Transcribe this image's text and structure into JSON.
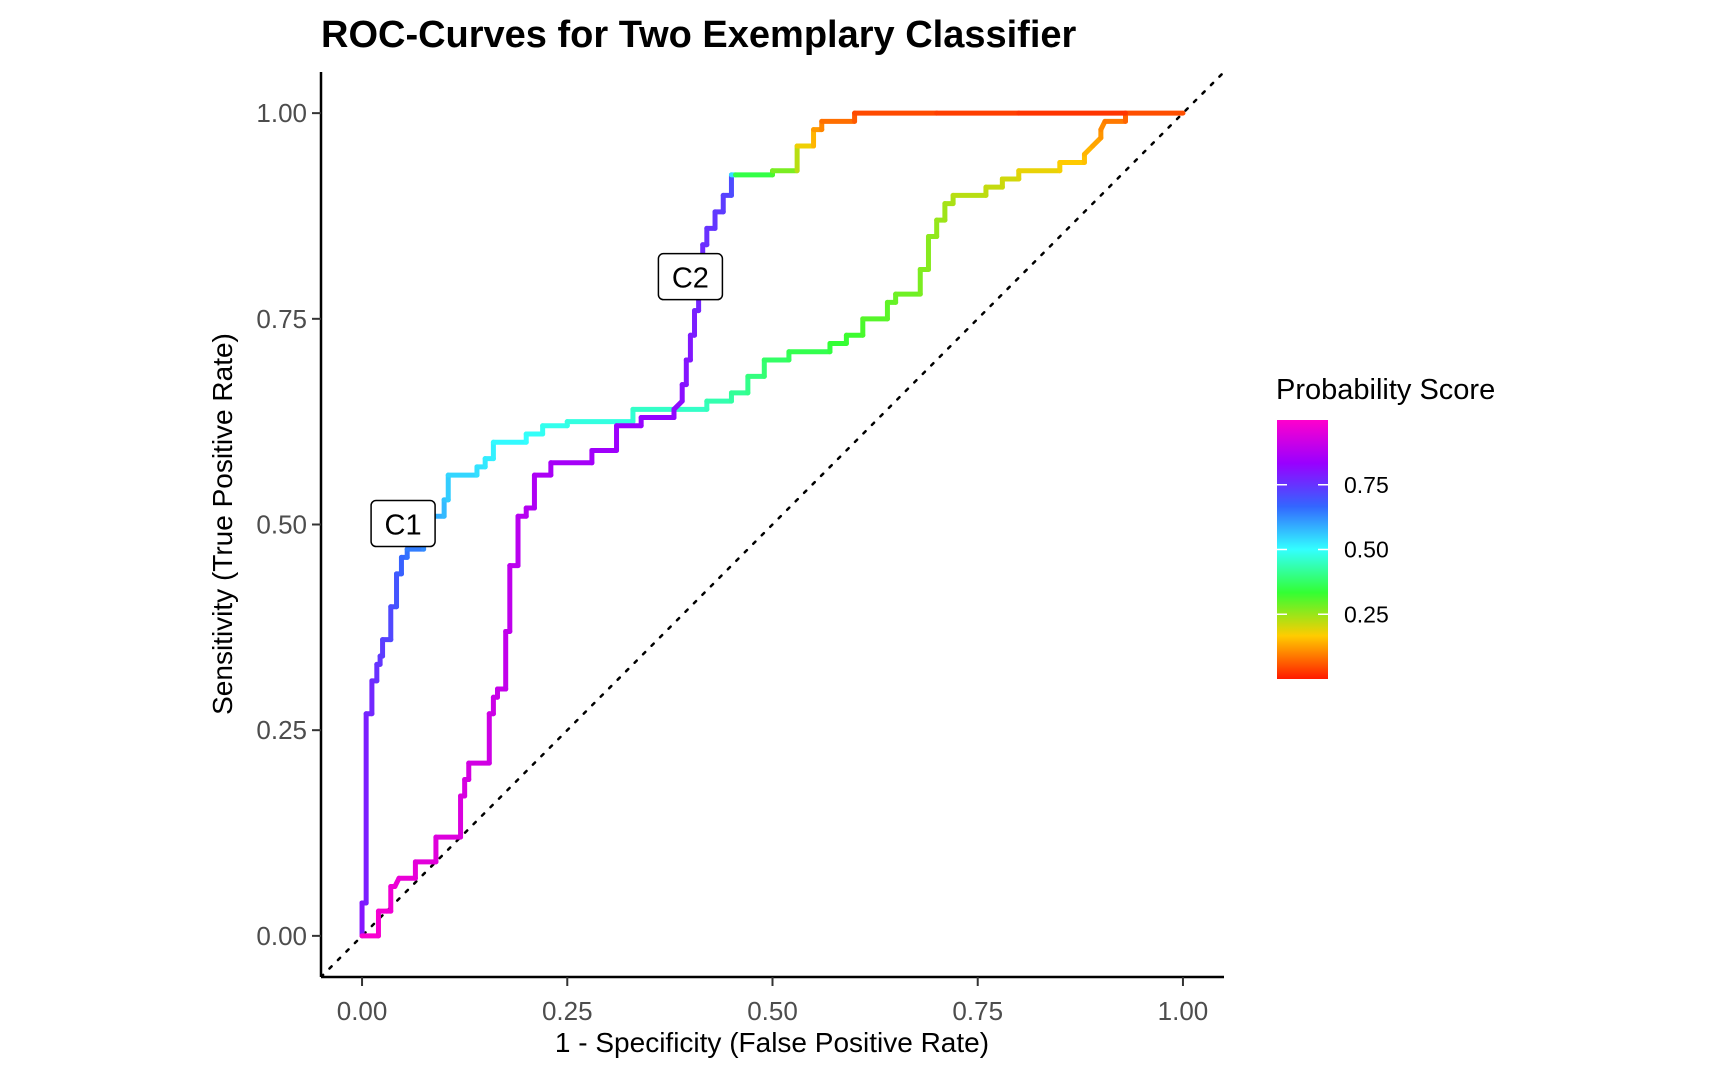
{
  "chart_data": {
    "type": "line",
    "title": "ROC-Curves for Two Exemplary Classifier",
    "xlabel": "1 - Specificity (False Positive Rate)",
    "ylabel": "Sensitivity (True Positive Rate)",
    "xlim": [
      -0.05,
      1.05
    ],
    "ylim": [
      -0.05,
      1.05
    ],
    "xticks": [
      0,
      0.25,
      0.5,
      0.75,
      1.0
    ],
    "xtick_labels": [
      "0.00",
      "0.25",
      "0.50",
      "0.75",
      "1.00"
    ],
    "yticks": [
      0,
      0.25,
      0.5,
      0.75,
      1.0
    ],
    "ytick_labels": [
      "0.00",
      "0.25",
      "0.50",
      "0.75",
      "1.00"
    ],
    "grid": false,
    "reference_line": {
      "x": [
        -0.05,
        1.05
      ],
      "y": [
        -0.05,
        1.05
      ],
      "style": "dotted"
    },
    "legend": {
      "title": "Probability Score",
      "placement": "right",
      "range": [
        0,
        1
      ],
      "ticks": [
        0.25,
        0.5,
        0.75
      ],
      "tick_labels": [
        "0.25",
        "0.50",
        "0.75"
      ],
      "colors": [
        "#ff1a00",
        "#ffcc00",
        "#33ff33",
        "#33ffff",
        "#3366ff",
        "#9900ff",
        "#ff00cc"
      ]
    },
    "annotations": [
      {
        "label": "C1",
        "x": 0.05,
        "y": 0.5
      },
      {
        "label": "C2",
        "x": 0.4,
        "y": 0.8
      }
    ],
    "series": [
      {
        "points": [
          [
            0.0,
            0.0,
            0.8
          ],
          [
            0.0,
            0.04,
            0.8
          ],
          [
            0.005,
            0.04,
            0.79
          ],
          [
            0.005,
            0.27,
            0.78
          ],
          [
            0.012,
            0.27,
            0.77
          ],
          [
            0.012,
            0.31,
            0.77
          ],
          [
            0.018,
            0.31,
            0.76
          ],
          [
            0.018,
            0.33,
            0.75
          ],
          [
            0.022,
            0.33,
            0.75
          ],
          [
            0.022,
            0.34,
            0.74
          ],
          [
            0.025,
            0.34,
            0.74
          ],
          [
            0.025,
            0.36,
            0.73
          ],
          [
            0.035,
            0.36,
            0.72
          ],
          [
            0.035,
            0.4,
            0.71
          ],
          [
            0.042,
            0.4,
            0.7
          ],
          [
            0.042,
            0.44,
            0.69
          ],
          [
            0.048,
            0.44,
            0.68
          ],
          [
            0.048,
            0.46,
            0.67
          ],
          [
            0.055,
            0.46,
            0.66
          ],
          [
            0.055,
            0.47,
            0.65
          ],
          [
            0.075,
            0.47,
            0.63
          ],
          [
            0.075,
            0.49,
            0.62
          ],
          [
            0.085,
            0.49,
            0.6
          ],
          [
            0.085,
            0.51,
            0.59
          ],
          [
            0.1,
            0.51,
            0.58
          ],
          [
            0.1,
            0.53,
            0.57
          ],
          [
            0.105,
            0.53,
            0.56
          ],
          [
            0.105,
            0.56,
            0.55
          ],
          [
            0.14,
            0.56,
            0.54
          ],
          [
            0.14,
            0.57,
            0.53
          ],
          [
            0.15,
            0.57,
            0.53
          ],
          [
            0.15,
            0.58,
            0.52
          ],
          [
            0.16,
            0.58,
            0.52
          ],
          [
            0.16,
            0.6,
            0.51
          ],
          [
            0.2,
            0.6,
            0.5
          ],
          [
            0.2,
            0.61,
            0.5
          ],
          [
            0.22,
            0.61,
            0.49
          ],
          [
            0.22,
            0.62,
            0.49
          ],
          [
            0.25,
            0.62,
            0.48
          ],
          [
            0.25,
            0.625,
            0.48
          ],
          [
            0.33,
            0.625,
            0.47
          ],
          [
            0.33,
            0.64,
            0.46
          ],
          [
            0.42,
            0.64,
            0.45
          ],
          [
            0.42,
            0.65,
            0.44
          ],
          [
            0.45,
            0.65,
            0.43
          ],
          [
            0.45,
            0.66,
            0.42
          ],
          [
            0.47,
            0.66,
            0.41
          ],
          [
            0.47,
            0.68,
            0.4
          ],
          [
            0.49,
            0.68,
            0.39
          ],
          [
            0.49,
            0.7,
            0.38
          ],
          [
            0.52,
            0.7,
            0.37
          ],
          [
            0.52,
            0.71,
            0.36
          ],
          [
            0.57,
            0.71,
            0.35
          ],
          [
            0.57,
            0.72,
            0.34
          ],
          [
            0.59,
            0.72,
            0.33
          ],
          [
            0.59,
            0.73,
            0.33
          ],
          [
            0.61,
            0.73,
            0.32
          ],
          [
            0.61,
            0.75,
            0.31
          ],
          [
            0.64,
            0.75,
            0.3
          ],
          [
            0.64,
            0.77,
            0.3
          ],
          [
            0.65,
            0.77,
            0.29
          ],
          [
            0.65,
            0.78,
            0.29
          ],
          [
            0.68,
            0.78,
            0.28
          ],
          [
            0.68,
            0.81,
            0.27
          ],
          [
            0.69,
            0.81,
            0.27
          ],
          [
            0.69,
            0.85,
            0.26
          ],
          [
            0.7,
            0.85,
            0.26
          ],
          [
            0.7,
            0.87,
            0.25
          ],
          [
            0.71,
            0.87,
            0.25
          ],
          [
            0.71,
            0.89,
            0.24
          ],
          [
            0.72,
            0.89,
            0.24
          ],
          [
            0.72,
            0.9,
            0.23
          ],
          [
            0.76,
            0.9,
            0.22
          ],
          [
            0.76,
            0.91,
            0.22
          ],
          [
            0.78,
            0.91,
            0.21
          ],
          [
            0.78,
            0.92,
            0.21
          ],
          [
            0.8,
            0.92,
            0.2
          ],
          [
            0.8,
            0.93,
            0.19
          ],
          [
            0.85,
            0.93,
            0.18
          ],
          [
            0.85,
            0.94,
            0.17
          ],
          [
            0.88,
            0.94,
            0.16
          ],
          [
            0.88,
            0.95,
            0.15
          ],
          [
            0.89,
            0.96,
            0.14
          ],
          [
            0.9,
            0.97,
            0.12
          ],
          [
            0.9,
            0.98,
            0.11
          ],
          [
            0.905,
            0.99,
            0.1
          ],
          [
            0.93,
            0.99,
            0.08
          ],
          [
            0.93,
            1.0,
            0.06
          ],
          [
            1.0,
            1.0,
            0.04
          ]
        ]
      },
      {
        "points": [
          [
            0.0,
            0.0,
            0.99
          ],
          [
            0.02,
            0.0,
            0.99
          ],
          [
            0.02,
            0.03,
            0.98
          ],
          [
            0.03,
            0.03,
            0.98
          ],
          [
            0.035,
            0.03,
            0.98
          ],
          [
            0.035,
            0.06,
            0.97
          ],
          [
            0.04,
            0.06,
            0.97
          ],
          [
            0.045,
            0.07,
            0.97
          ],
          [
            0.065,
            0.07,
            0.96
          ],
          [
            0.065,
            0.09,
            0.96
          ],
          [
            0.09,
            0.09,
            0.95
          ],
          [
            0.09,
            0.12,
            0.95
          ],
          [
            0.12,
            0.12,
            0.94
          ],
          [
            0.12,
            0.17,
            0.94
          ],
          [
            0.125,
            0.17,
            0.94
          ],
          [
            0.125,
            0.19,
            0.93
          ],
          [
            0.13,
            0.19,
            0.93
          ],
          [
            0.13,
            0.21,
            0.93
          ],
          [
            0.155,
            0.21,
            0.92
          ],
          [
            0.155,
            0.27,
            0.92
          ],
          [
            0.16,
            0.27,
            0.92
          ],
          [
            0.16,
            0.29,
            0.91
          ],
          [
            0.165,
            0.29,
            0.91
          ],
          [
            0.165,
            0.3,
            0.91
          ],
          [
            0.175,
            0.3,
            0.9
          ],
          [
            0.175,
            0.37,
            0.9
          ],
          [
            0.18,
            0.37,
            0.9
          ],
          [
            0.18,
            0.45,
            0.89
          ],
          [
            0.19,
            0.45,
            0.89
          ],
          [
            0.19,
            0.51,
            0.88
          ],
          [
            0.2,
            0.51,
            0.88
          ],
          [
            0.2,
            0.52,
            0.88
          ],
          [
            0.21,
            0.52,
            0.87
          ],
          [
            0.21,
            0.56,
            0.87
          ],
          [
            0.23,
            0.56,
            0.86
          ],
          [
            0.23,
            0.575,
            0.86
          ],
          [
            0.28,
            0.575,
            0.85
          ],
          [
            0.28,
            0.59,
            0.85
          ],
          [
            0.31,
            0.59,
            0.84
          ],
          [
            0.31,
            0.62,
            0.84
          ],
          [
            0.34,
            0.62,
            0.83
          ],
          [
            0.34,
            0.63,
            0.83
          ],
          [
            0.38,
            0.63,
            0.82
          ],
          [
            0.38,
            0.64,
            0.82
          ],
          [
            0.39,
            0.65,
            0.81
          ],
          [
            0.39,
            0.67,
            0.81
          ],
          [
            0.395,
            0.67,
            0.8
          ],
          [
            0.395,
            0.7,
            0.8
          ],
          [
            0.4,
            0.7,
            0.8
          ],
          [
            0.4,
            0.73,
            0.79
          ],
          [
            0.405,
            0.73,
            0.79
          ],
          [
            0.405,
            0.76,
            0.78
          ],
          [
            0.41,
            0.76,
            0.78
          ],
          [
            0.41,
            0.79,
            0.77
          ],
          [
            0.415,
            0.79,
            0.77
          ],
          [
            0.415,
            0.84,
            0.76
          ],
          [
            0.42,
            0.84,
            0.76
          ],
          [
            0.42,
            0.86,
            0.75
          ],
          [
            0.43,
            0.86,
            0.75
          ],
          [
            0.43,
            0.88,
            0.74
          ],
          [
            0.44,
            0.88,
            0.74
          ],
          [
            0.44,
            0.9,
            0.73
          ],
          [
            0.45,
            0.9,
            0.72
          ],
          [
            0.45,
            0.925,
            0.7
          ],
          [
            0.455,
            0.925,
            0.37
          ],
          [
            0.5,
            0.925,
            0.33
          ],
          [
            0.5,
            0.93,
            0.3
          ],
          [
            0.53,
            0.93,
            0.25
          ],
          [
            0.53,
            0.96,
            0.2
          ],
          [
            0.55,
            0.96,
            0.16
          ],
          [
            0.55,
            0.98,
            0.13
          ],
          [
            0.56,
            0.98,
            0.11
          ],
          [
            0.56,
            0.99,
            0.09
          ],
          [
            0.6,
            0.99,
            0.07
          ],
          [
            0.6,
            1.0,
            0.05
          ],
          [
            0.7,
            1.0,
            0.04
          ],
          [
            0.8,
            1.0,
            0.03
          ],
          [
            0.93,
            1.0,
            0.02
          ]
        ]
      }
    ]
  }
}
